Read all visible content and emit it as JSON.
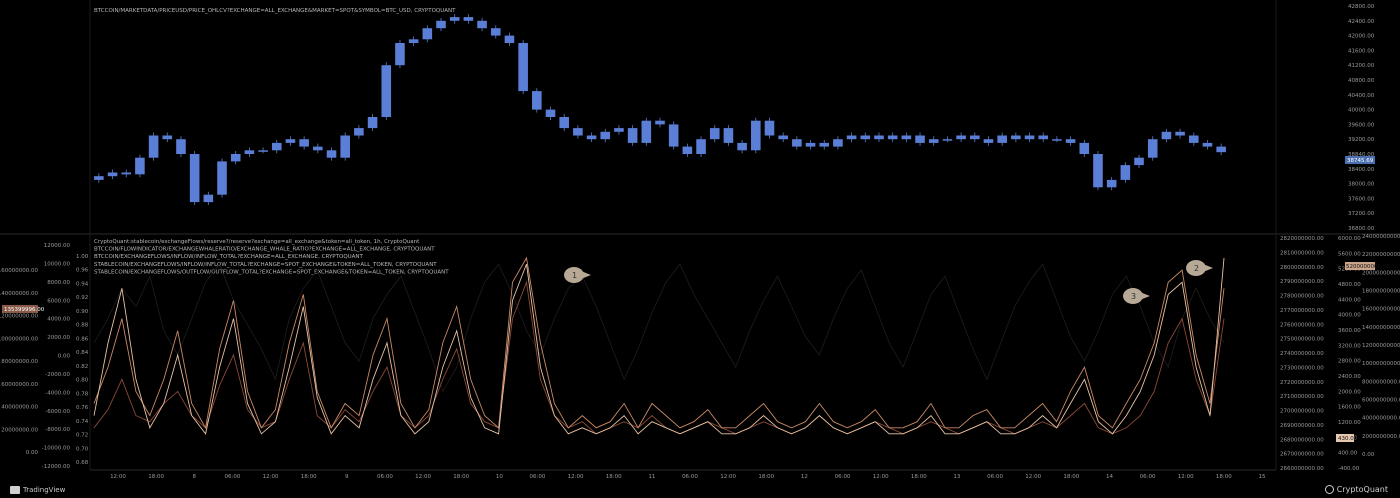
{
  "chart_data": [
    {
      "type": "candlestick",
      "title": "BTCCOIN/MARKETDATA/PRICEUSD/PRICE_OHLCV?EXCHANGE=ALL_EXCHANGE&MARKET=SPOT&SYMBOL=BTC_USD, CRYPTOQUANT",
      "y_axis_right": {
        "ticks": [
          "42800.00",
          "42400.00",
          "42000.00",
          "41600.00",
          "41200.00",
          "40800.00",
          "40400.00",
          "40000.00",
          "39600.00",
          "39200.00",
          "38840.00",
          "38400.00",
          "38000.00",
          "37600.00",
          "37200.00",
          "36800.00"
        ],
        "range": [
          36800,
          42800
        ]
      },
      "last_price_label": "38745.69",
      "close": [
        38200,
        38300,
        38250,
        38700,
        39300,
        39200,
        38800,
        37500,
        37700,
        38600,
        38800,
        38900,
        38900,
        39100,
        39200,
        39000,
        38900,
        38700,
        39300,
        39500,
        39800,
        41200,
        41800,
        41900,
        42200,
        42400,
        42500,
        42400,
        42200,
        42000,
        41800,
        40500,
        40000,
        39800,
        39500,
        39300,
        39200,
        39400,
        39500,
        39100,
        39700,
        39600,
        39000,
        38800,
        39200,
        39500,
        39100,
        38900,
        39700,
        39300,
        39200,
        39000,
        39100,
        39000,
        39200,
        39300,
        39200,
        39300,
        39200,
        39300,
        39100,
        39200,
        39200,
        39300,
        39200,
        39100,
        39300,
        39200,
        39300,
        39200,
        39200,
        39100,
        38800,
        37900,
        38100,
        38500,
        38700,
        39200,
        39400,
        39300,
        39100,
        39000,
        38850
      ]
    },
    {
      "type": "line",
      "titles": [
        "CryptoQuant:stablecoin/exchangeFlows/reserve?/reserve?exchange=all_exchange&token=all_token, 1h, CryptoQuant",
        "BTCCOIN/FLOWINDICATOR/EXCHANGEWHALERATIO/EXCHANGE_WHALE_RATIO?EXCHANGE=ALL_EXCHANGE, CRYPTOQUANT",
        "BTCCOIN/EXCHANGEFLOWS/INFLOW/INFLOW_TOTAL?EXCHANGE=ALL_EXCHANGE, CRYPTOQUANT",
        "STABLECOIN/EXCHANGEFLOWS/INFLOW/INFLOW_TOTAL?EXCHANGE=SPOT_EXCHANGE&TOKEN=ALL_TOKEN, CRYPTOQUANT",
        "STABLECOIN/EXCHANGEFLOWS/OUTFLOW/OUTFLOW_TOTAL?EXCHANGE=SPOT_EXCHANGE&TOKEN=ALL_TOKEN, CRYPTOQUANT"
      ],
      "axis_a": {
        "ticks": [
          "160000000.00",
          "140000000.00",
          "120000000.00",
          "100000000.00",
          "80000000.00",
          "60000000.00",
          "40000000.00",
          "20000000.00",
          "0.00"
        ],
        "current": "135399996.00"
      },
      "axis_b": {
        "ticks": [
          "12000.00",
          "10000.00",
          "8000.00",
          "6000.00",
          "4000.00",
          "2000.00",
          "0.00",
          "-2000.00",
          "-4000.00",
          "-6000.00",
          "-8000.00",
          "-10000.00",
          "-12000.00"
        ]
      },
      "axis_c": {
        "ticks": [
          "1.00",
          "0.96",
          "0.94",
          "0.92",
          "0.90",
          "0.88",
          "0.86",
          "0.84",
          "0.82",
          "0.80",
          "0.78",
          "0.76",
          "0.74",
          "0.72",
          "0.70",
          "0.68"
        ]
      },
      "axis_d": {
        "ticks": [
          "2820000000.00",
          "2810000000.00",
          "2800000000.00",
          "2790000000.00",
          "2780000000.00",
          "2770000000.00",
          "2760000000.00",
          "2750000000.00",
          "2740000000.00",
          "2730000000.00",
          "2720000000.00",
          "2710000000.00",
          "2700000000.00",
          "2690000000.00",
          "2680000000.00",
          "2670000000.00",
          "2660000000.00"
        ]
      },
      "axis_e": {
        "ticks": [
          "6000.00",
          "5600.00",
          "5200.00",
          "4800.00",
          "4400.00",
          "4000.00",
          "3600.00",
          "3200.00",
          "2800.00",
          "2400.00",
          "2000.00",
          "1600.00",
          "1200.00",
          "800.00",
          "400.00",
          "-400.00"
        ],
        "current": "5200000000.00"
      },
      "axis_f": {
        "ticks": [
          "24000000000.00",
          "22000000000.00",
          "20000000000.00",
          "18000000000.00",
          "16000000000.00",
          "14000000000.00",
          "12000000000.00",
          "10000000000.00",
          "8000000000.00",
          "6000000000.00",
          "4000000000.00",
          "2000000000.00",
          "0.00"
        ],
        "current": "430.00"
      },
      "annotations": [
        "1",
        "2",
        "3"
      ],
      "series": [
        {
          "color": "#1e1e1e",
          "values": [
            0.86,
            0.9,
            0.95,
            0.92,
            0.97,
            0.88,
            0.84,
            0.9,
            0.96,
            0.99,
            0.93,
            0.89,
            0.85,
            0.8,
            0.9,
            0.95,
            0.98,
            0.92,
            0.86,
            0.83,
            0.9,
            0.94,
            0.97,
            0.91,
            0.85,
            0.78,
            0.82,
            0.9,
            0.96,
            0.99,
            0.94,
            0.88,
            0.84,
            0.9,
            0.95,
            0.97,
            0.92,
            0.86,
            0.8,
            0.85,
            0.91,
            0.96,
            0.99,
            0.94,
            0.9,
            0.86,
            0.82,
            0.88,
            0.93,
            0.97,
            0.92,
            0.87,
            0.84,
            0.9,
            0.95,
            0.98,
            0.92,
            0.86,
            0.82,
            0.88,
            0.94,
            0.97,
            0.91,
            0.85,
            0.8,
            0.86,
            0.92,
            0.96,
            0.99,
            0.93,
            0.87,
            0.83,
            0.88,
            0.94,
            0.97,
            0.92,
            0.86,
            0.82,
            0.9,
            0.95,
            0.9,
            0.86
          ]
        },
        {
          "color": "#8a4a36",
          "values": [
            0.72,
            0.75,
            0.8,
            0.74,
            0.73,
            0.76,
            0.78,
            0.74,
            0.72,
            0.79,
            0.84,
            0.75,
            0.72,
            0.73,
            0.8,
            0.86,
            0.74,
            0.72,
            0.75,
            0.73,
            0.78,
            0.82,
            0.74,
            0.72,
            0.74,
            0.8,
            0.85,
            0.76,
            0.73,
            0.72,
            0.9,
            0.96,
            0.8,
            0.74,
            0.72,
            0.73,
            0.71,
            0.72,
            0.73,
            0.72,
            0.74,
            0.72,
            0.71,
            0.72,
            0.73,
            0.72,
            0.71,
            0.72,
            0.73,
            0.72,
            0.71,
            0.72,
            0.74,
            0.72,
            0.71,
            0.72,
            0.73,
            0.72,
            0.71,
            0.72,
            0.73,
            0.72,
            0.71,
            0.72,
            0.73,
            0.72,
            0.71,
            0.72,
            0.73,
            0.72,
            0.74,
            0.76,
            0.72,
            0.71,
            0.72,
            0.74,
            0.78,
            0.86,
            0.9,
            0.8,
            0.74,
            0.9
          ]
        },
        {
          "color": "#c98a66",
          "values": [
            0.76,
            0.82,
            0.9,
            0.78,
            0.74,
            0.8,
            0.88,
            0.76,
            0.72,
            0.85,
            0.93,
            0.78,
            0.72,
            0.75,
            0.86,
            0.94,
            0.78,
            0.72,
            0.76,
            0.74,
            0.84,
            0.9,
            0.76,
            0.72,
            0.75,
            0.86,
            0.92,
            0.8,
            0.74,
            0.72,
            0.96,
            1.0,
            0.86,
            0.76,
            0.72,
            0.74,
            0.72,
            0.73,
            0.76,
            0.72,
            0.76,
            0.74,
            0.72,
            0.73,
            0.75,
            0.72,
            0.72,
            0.74,
            0.76,
            0.73,
            0.72,
            0.73,
            0.76,
            0.73,
            0.72,
            0.73,
            0.75,
            0.72,
            0.72,
            0.73,
            0.76,
            0.72,
            0.72,
            0.74,
            0.75,
            0.72,
            0.72,
            0.74,
            0.76,
            0.73,
            0.78,
            0.82,
            0.74,
            0.72,
            0.76,
            0.8,
            0.86,
            0.96,
            0.98,
            0.84,
            0.76,
            0.95
          ]
        },
        {
          "color": "#e8c2a4",
          "values": [
            0.74,
            0.86,
            0.95,
            0.8,
            0.72,
            0.76,
            0.84,
            0.74,
            0.71,
            0.82,
            0.9,
            0.76,
            0.71,
            0.73,
            0.82,
            0.92,
            0.77,
            0.71,
            0.74,
            0.72,
            0.8,
            0.86,
            0.74,
            0.71,
            0.73,
            0.82,
            0.88,
            0.77,
            0.72,
            0.71,
            0.93,
            0.99,
            0.82,
            0.74,
            0.71,
            0.72,
            0.71,
            0.72,
            0.74,
            0.71,
            0.73,
            0.72,
            0.71,
            0.72,
            0.73,
            0.71,
            0.71,
            0.72,
            0.74,
            0.72,
            0.71,
            0.72,
            0.74,
            0.72,
            0.71,
            0.72,
            0.73,
            0.71,
            0.71,
            0.72,
            0.74,
            0.71,
            0.71,
            0.72,
            0.73,
            0.71,
            0.71,
            0.72,
            0.74,
            0.72,
            0.76,
            0.8,
            0.73,
            0.71,
            0.74,
            0.78,
            0.84,
            0.94,
            0.96,
            0.82,
            0.74,
            1.0
          ]
        }
      ]
    }
  ],
  "x_axis": {
    "ticks": [
      "12:00",
      "18:00",
      "8",
      "06:00",
      "12:00",
      "18:00",
      "9",
      "06:00",
      "12:00",
      "18:00",
      "10",
      "06:00",
      "12:00",
      "18:00",
      "11",
      "06:00",
      "12:00",
      "18:00",
      "12",
      "06:00",
      "12:00",
      "18:00",
      "13",
      "06:00",
      "12:00",
      "18:00",
      "14",
      "06:00",
      "12:00",
      "18:00",
      "15"
    ]
  },
  "footer": {
    "left_brand": "TradingView",
    "right_brand": "CryptoQuant"
  }
}
